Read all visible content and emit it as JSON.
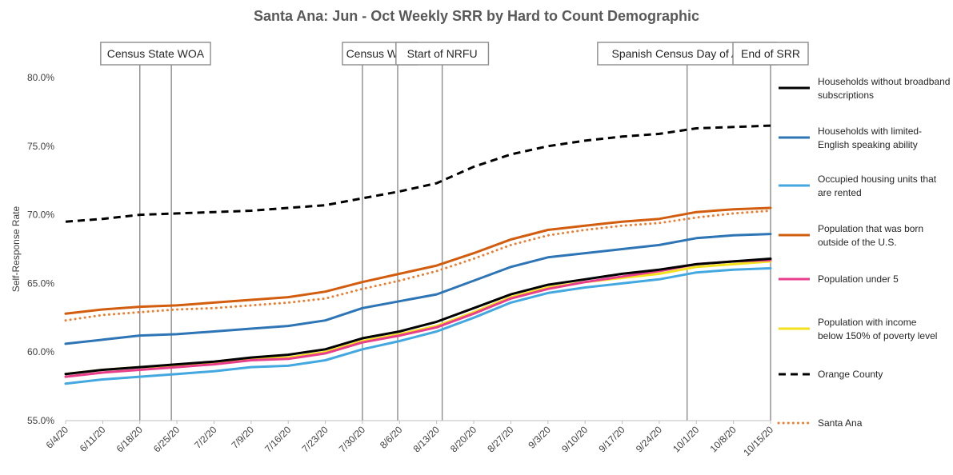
{
  "chart_data": {
    "type": "line",
    "title": "Santa Ana: Jun - Oct Weekly SRR by Hard to Count Demographic",
    "xlabel": "",
    "ylabel": "Self-Response Rate",
    "ylim": [
      55.0,
      80.0
    ],
    "yticks": [
      "55.0%",
      "60.0%",
      "65.0%",
      "70.0%",
      "75.0%",
      "80.0%"
    ],
    "ytick_values": [
      55,
      60,
      65,
      70,
      75,
      80
    ],
    "grid": false,
    "legend_position": "right",
    "categories": [
      "6/4/20",
      "6/11/20",
      "6/18/20",
      "6/25/20",
      "7/2/20",
      "7/9/20",
      "7/16/20",
      "7/23/20",
      "7/30/20",
      "8/6/20",
      "8/13/20",
      "8/20/20",
      "8/27/20",
      "9/3/20",
      "9/10/20",
      "9/17/20",
      "9/24/20",
      "10/1/20",
      "10/8/20",
      "10/15/20"
    ],
    "annotations": [
      {
        "label": "Census State WOA",
        "lines_at": [
          2.0,
          2.85
        ]
      },
      {
        "label": "Census WOA",
        "lines_at": [
          8.0,
          8.95
        ]
      },
      {
        "label": "Start of NRFU",
        "lines_at": [
          10.15
        ]
      },
      {
        "label": "Spanish Census Day of Action",
        "lines_at": [
          16.75
        ]
      },
      {
        "label": "End of SRR",
        "lines_at": [
          19.0
        ]
      }
    ],
    "series": [
      {
        "name": "Households without broadband subscriptions",
        "color": "#000000",
        "style": "solid",
        "values": [
          58.4,
          58.7,
          58.9,
          59.1,
          59.3,
          59.6,
          59.8,
          60.2,
          61.0,
          61.5,
          62.2,
          63.2,
          64.2,
          64.9,
          65.3,
          65.7,
          66.0,
          66.4,
          66.6,
          66.8
        ]
      },
      {
        "name": "Households with limited-English speaking ability",
        "color": "#2e75b6",
        "style": "solid",
        "values": [
          60.6,
          60.9,
          61.2,
          61.3,
          61.5,
          61.7,
          61.9,
          62.3,
          63.2,
          63.7,
          64.2,
          65.2,
          66.2,
          66.9,
          67.2,
          67.5,
          67.8,
          68.3,
          68.5,
          68.6
        ]
      },
      {
        "name": "Occupied housing units that are rented",
        "color": "#44a8e0",
        "style": "solid",
        "values": [
          57.7,
          58.0,
          58.2,
          58.4,
          58.6,
          58.9,
          59.0,
          59.4,
          60.2,
          60.8,
          61.5,
          62.5,
          63.6,
          64.3,
          64.7,
          65.0,
          65.3,
          65.8,
          66.0,
          66.1
        ]
      },
      {
        "name": "Population that was born outside of the U.S.",
        "color": "#d35d0e",
        "style": "solid",
        "values": [
          62.8,
          63.1,
          63.3,
          63.4,
          63.6,
          63.8,
          64.0,
          64.4,
          65.1,
          65.7,
          66.3,
          67.2,
          68.2,
          68.9,
          69.2,
          69.5,
          69.7,
          70.2,
          70.4,
          70.5
        ]
      },
      {
        "name": "Population under 5",
        "color": "#e83e8c",
        "style": "solid",
        "values": [
          58.2,
          58.5,
          58.7,
          58.9,
          59.1,
          59.4,
          59.5,
          59.9,
          60.7,
          61.2,
          61.8,
          62.8,
          63.9,
          64.6,
          65.1,
          65.5,
          65.9,
          66.4,
          66.6,
          66.7
        ]
      },
      {
        "name": "Population with income below 150% of poverty level",
        "color": "#f2e11c",
        "style": "solid",
        "values": [
          58.4,
          58.7,
          58.9,
          59.0,
          59.2,
          59.5,
          59.6,
          60.0,
          60.8,
          61.3,
          61.9,
          62.9,
          64.0,
          64.7,
          65.1,
          65.4,
          65.7,
          66.2,
          66.4,
          66.6
        ]
      },
      {
        "name": "Orange County",
        "color": "#000000",
        "style": "dashed",
        "values": [
          69.5,
          69.7,
          70.0,
          70.1,
          70.2,
          70.3,
          70.5,
          70.7,
          71.2,
          71.7,
          72.3,
          73.5,
          74.4,
          75.0,
          75.4,
          75.7,
          75.9,
          76.3,
          76.4,
          76.5
        ]
      },
      {
        "name": "Santa Ana",
        "color": "#ed7d31",
        "style": "dotted",
        "values": [
          62.3,
          62.7,
          62.9,
          63.1,
          63.2,
          63.4,
          63.6,
          63.9,
          64.6,
          65.2,
          65.9,
          66.8,
          67.8,
          68.5,
          68.9,
          69.2,
          69.4,
          69.8,
          70.1,
          70.3
        ]
      }
    ]
  }
}
